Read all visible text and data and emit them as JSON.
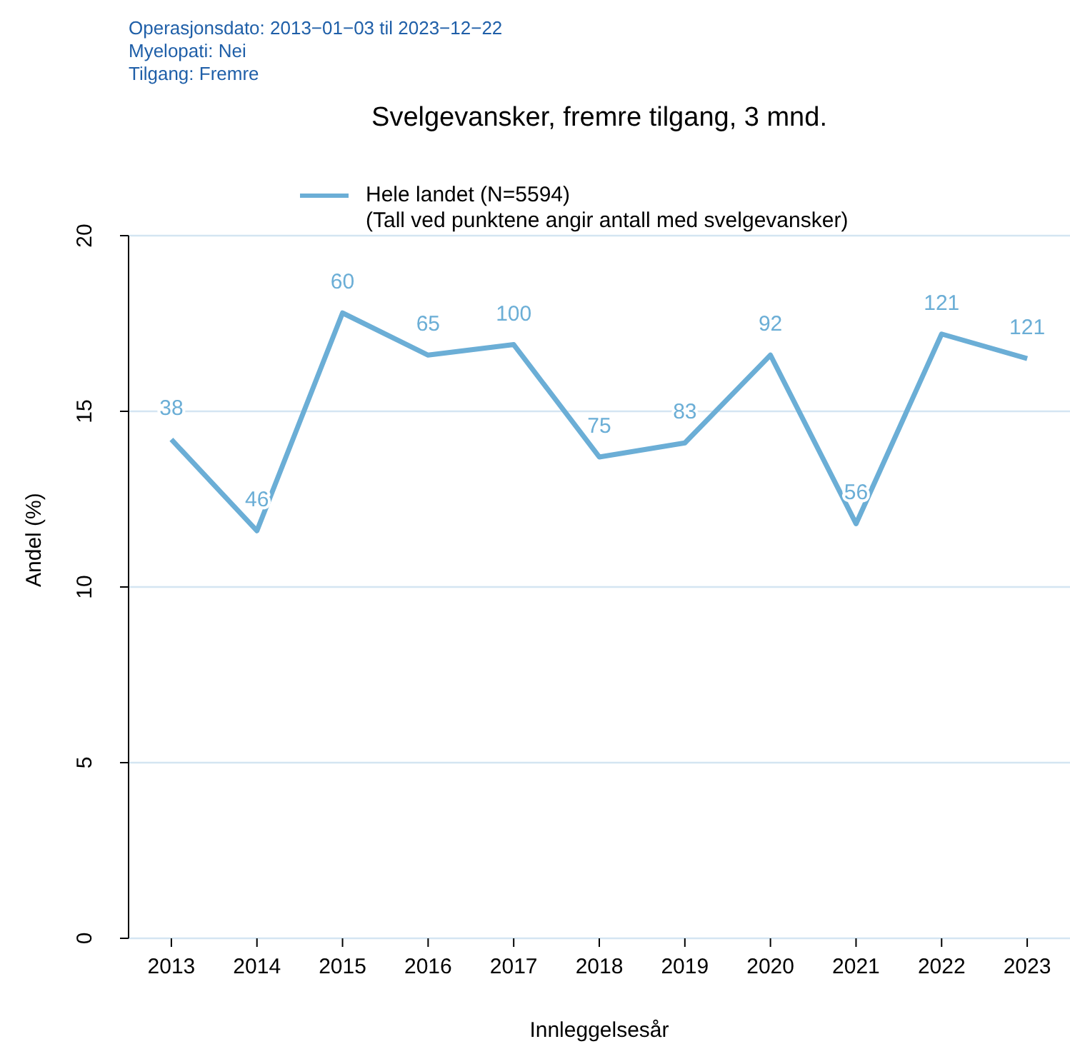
{
  "chart_data": {
    "type": "line",
    "title": "Svelgevansker, fremre tilgang, 3 mnd.",
    "xlabel": "Innleggelsesår",
    "ylabel": "Andel (%)",
    "annotations": [
      "Operasjonsdato: 2013−01−03 til 2023−12−22",
      "Myelopati: Nei",
      "Tilgang: Fremre",
      "(Tall ved punktene angir antall med svelgevansker)",
      {
        "text": "38",
        "x": "2013",
        "y": 14.2
      },
      {
        "text": "46",
        "x": "2014",
        "y": 11.6
      },
      {
        "text": "60",
        "x": "2015",
        "y": 17.8
      },
      {
        "text": "65",
        "x": "2016",
        "y": 16.6
      },
      {
        "text": "100",
        "x": "2017",
        "y": 16.9
      },
      {
        "text": "75",
        "x": "2018",
        "y": 13.7
      },
      {
        "text": "83",
        "x": "2019",
        "y": 14.1
      },
      {
        "text": "92",
        "x": "2020",
        "y": 16.6
      },
      {
        "text": "56",
        "x": "2021",
        "y": 11.8
      },
      {
        "text": "121",
        "x": "2022",
        "y": 17.2
      },
      {
        "text": "121",
        "x": "2023",
        "y": 16.5
      }
    ],
    "categories": [
      "2013",
      "2014",
      "2015",
      "2016",
      "2017",
      "2018",
      "2019",
      "2020",
      "2021",
      "2022",
      "2023"
    ],
    "series": [
      {
        "name": "Hele landet (N=5594)",
        "color": "#6baed6",
        "values": [
          14.2,
          11.6,
          17.8,
          16.6,
          16.9,
          13.7,
          14.1,
          16.6,
          11.8,
          17.2,
          16.5
        ]
      }
    ],
    "ylim": [
      0,
      20
    ],
    "yticks": [
      0,
      5,
      10,
      15,
      20
    ],
    "grid": "y",
    "legend": "top",
    "marker": "none",
    "line_style": "solid"
  }
}
